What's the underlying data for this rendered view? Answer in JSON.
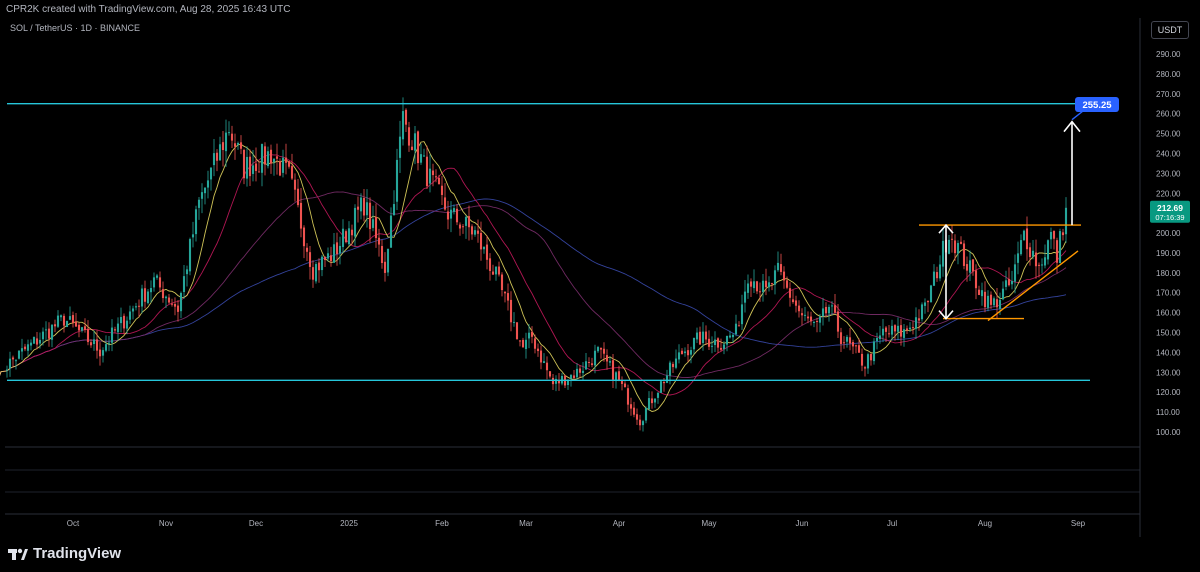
{
  "header": {
    "credit": "CPR2K created with TradingView.com, Aug 28, 2025 16:43 UTC"
  },
  "symbol": {
    "label": "SOL / TetherUS · 1D · BINANCE"
  },
  "currency_button": "USDT",
  "price_tag": {
    "price": "212.69",
    "countdown": "07:16:39"
  },
  "target_label": "255.25",
  "branding": {
    "name": "TradingView"
  },
  "colors": {
    "up": "#26a69a",
    "down": "#ef5350",
    "sma_fast": "#e6d860",
    "sma_mid": "#c2185b",
    "sma_slow": "#7b2d6b",
    "sma_long": "#3949ab",
    "range_lines": "#26c6da",
    "pattern_lines": "#ff9800",
    "target_box": "#2962ff"
  },
  "chart_data": {
    "type": "candlestick",
    "y_axis": {
      "min": 100,
      "max": 290,
      "ticks": [
        290,
        280,
        270,
        260,
        250,
        240,
        230,
        220,
        210,
        200,
        190,
        180,
        170,
        160,
        150,
        140,
        130,
        120,
        110,
        100
      ]
    },
    "x_axis": {
      "start": "2025-09-01",
      "end": "2025-09-07",
      "labels": [
        {
          "date": "2024-10-01",
          "text": "Oct"
        },
        {
          "date": "2024-11-01",
          "text": "Nov"
        },
        {
          "date": "2024-12-01",
          "text": "Dec"
        },
        {
          "date": "2025-01-01",
          "text": "2025"
        },
        {
          "date": "2025-02-01",
          "text": "Feb"
        },
        {
          "date": "2025-03-01",
          "text": "Mar"
        },
        {
          "date": "2025-04-01",
          "text": "Apr"
        },
        {
          "date": "2025-05-01",
          "text": "May"
        },
        {
          "date": "2025-06-01",
          "text": "Jun"
        },
        {
          "date": "2025-07-01",
          "text": "Jul"
        },
        {
          "date": "2025-08-01",
          "text": "Aug"
        },
        {
          "date": "2025-09-01",
          "text": "Sep"
        }
      ]
    },
    "anchors": [
      [
        "2024-09-06",
        130
      ],
      [
        "2024-09-18",
        145
      ],
      [
        "2024-09-28",
        157
      ],
      [
        "2024-10-10",
        141
      ],
      [
        "2024-10-20",
        160
      ],
      [
        "2024-10-28",
        176
      ],
      [
        "2024-11-05",
        162
      ],
      [
        "2024-11-12",
        215
      ],
      [
        "2024-11-22",
        253
      ],
      [
        "2024-11-27",
        233
      ],
      [
        "2024-12-06",
        240
      ],
      [
        "2024-12-12",
        228
      ],
      [
        "2024-12-20",
        182
      ],
      [
        "2024-12-27",
        190
      ],
      [
        "2025-01-06",
        215
      ],
      [
        "2025-01-13",
        183
      ],
      [
        "2025-01-19",
        258
      ],
      [
        "2025-01-27",
        230
      ],
      [
        "2025-02-03",
        210
      ],
      [
        "2025-02-12",
        200
      ],
      [
        "2025-02-19",
        178
      ],
      [
        "2025-02-28",
        142
      ],
      [
        "2025-03-03",
        148
      ],
      [
        "2025-03-10",
        124
      ],
      [
        "2025-03-18",
        130
      ],
      [
        "2025-03-25",
        140
      ],
      [
        "2025-03-31",
        128
      ],
      [
        "2025-04-08",
        106
      ],
      [
        "2025-04-14",
        122
      ],
      [
        "2025-04-22",
        140
      ],
      [
        "2025-04-28",
        147
      ],
      [
        "2025-05-05",
        145
      ],
      [
        "2025-05-10",
        150
      ],
      [
        "2025-05-14",
        180
      ],
      [
        "2025-05-20",
        170
      ],
      [
        "2025-05-24",
        180
      ],
      [
        "2025-06-01",
        158
      ],
      [
        "2025-06-06",
        152
      ],
      [
        "2025-06-10",
        163
      ],
      [
        "2025-06-14",
        148
      ],
      [
        "2025-06-22",
        134
      ],
      [
        "2025-06-28",
        150
      ],
      [
        "2025-07-05",
        150
      ],
      [
        "2025-07-12",
        162
      ],
      [
        "2025-07-20",
        201
      ],
      [
        "2025-07-24",
        190
      ],
      [
        "2025-07-31",
        170
      ],
      [
        "2025-08-03",
        163
      ],
      [
        "2025-08-10",
        175
      ],
      [
        "2025-08-14",
        200
      ],
      [
        "2025-08-19",
        183
      ],
      [
        "2025-08-23",
        199
      ],
      [
        "2025-08-25",
        188
      ],
      [
        "2025-08-28",
        212.69
      ]
    ],
    "last_price": 212.69,
    "moving_averages": [
      "fast",
      "mid",
      "slow",
      "long"
    ],
    "horizontal_levels": [
      {
        "price": 265,
        "from": "2024-09-01",
        "to": "2025-09-01",
        "color": "range"
      },
      {
        "price": 126,
        "from": "2024-09-01",
        "to": "2025-09-01",
        "color": "range"
      }
    ],
    "pattern": {
      "resistance": {
        "price": 204,
        "from": "2025-07-10",
        "to": "2025-08-31"
      },
      "base": {
        "price": 157,
        "from": "2025-07-18",
        "to": "2025-08-14"
      },
      "trendline": {
        "from": [
          "2025-08-02",
          156
        ],
        "to": [
          "2025-09-01",
          191
        ]
      },
      "height_arrow": {
        "date": "2025-07-19",
        "from": 157,
        "to": 204
      },
      "target_arrow": {
        "date": "2025-08-30",
        "from": 204,
        "to": 256
      }
    },
    "target": 255.25
  }
}
